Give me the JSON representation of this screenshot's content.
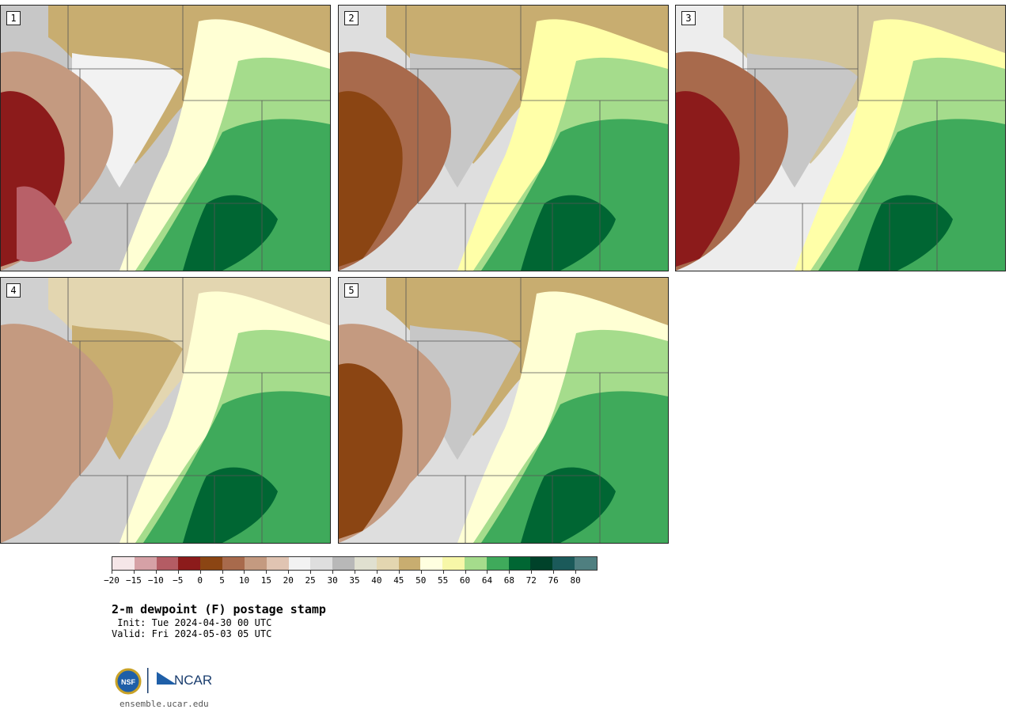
{
  "panels": [
    {
      "label": "1",
      "fields": [
        {
          "color": "#c7c7c7",
          "shape": "bg"
        },
        {
          "color": "#c8ad70",
          "shape": "north-band"
        },
        {
          "color": "#f2f2f2",
          "shape": "mid-gray"
        },
        {
          "color": "#c49a80",
          "shape": "west-blob"
        },
        {
          "color": "#8c1b1b",
          "shape": "west-core"
        },
        {
          "color": "#b86068",
          "shape": "west-spot"
        },
        {
          "color": "#ffffd4",
          "shape": "yellow-band"
        },
        {
          "color": "#a5dc8c",
          "shape": "light-green"
        },
        {
          "color": "#3faa5b",
          "shape": "green"
        },
        {
          "color": "#006633",
          "shape": "dark-green"
        }
      ]
    },
    {
      "label": "2",
      "fields": [
        {
          "color": "#dedede",
          "shape": "bg"
        },
        {
          "color": "#c8ad70",
          "shape": "north-band"
        },
        {
          "color": "#c7c7c7",
          "shape": "mid-gray"
        },
        {
          "color": "#a86a4c",
          "shape": "west-blob"
        },
        {
          "color": "#8b4513",
          "shape": "west-core"
        },
        {
          "color": "#ffffa8",
          "shape": "yellow-band"
        },
        {
          "color": "#a5dc8c",
          "shape": "light-green"
        },
        {
          "color": "#3faa5b",
          "shape": "green"
        },
        {
          "color": "#006633",
          "shape": "dark-green"
        }
      ]
    },
    {
      "label": "3",
      "fields": [
        {
          "color": "#ededed",
          "shape": "bg"
        },
        {
          "color": "#d2c49a",
          "shape": "north-band"
        },
        {
          "color": "#c7c7c7",
          "shape": "mid-gray"
        },
        {
          "color": "#a86a4c",
          "shape": "west-blob"
        },
        {
          "color": "#8c1b1b",
          "shape": "west-core"
        },
        {
          "color": "#ffffa8",
          "shape": "yellow-band"
        },
        {
          "color": "#a5dc8c",
          "shape": "light-green"
        },
        {
          "color": "#3faa5b",
          "shape": "green"
        },
        {
          "color": "#006633",
          "shape": "dark-green"
        }
      ]
    },
    {
      "label": "4",
      "fields": [
        {
          "color": "#d0d0d0",
          "shape": "bg"
        },
        {
          "color": "#e3d6b0",
          "shape": "north-band"
        },
        {
          "color": "#c8ad70",
          "shape": "mid-gray"
        },
        {
          "color": "#c49a80",
          "shape": "west-blob"
        },
        {
          "color": "#ffffd4",
          "shape": "yellow-band"
        },
        {
          "color": "#a5dc8c",
          "shape": "light-green"
        },
        {
          "color": "#3faa5b",
          "shape": "green"
        },
        {
          "color": "#006633",
          "shape": "dark-green"
        }
      ]
    },
    {
      "label": "5",
      "fields": [
        {
          "color": "#dedede",
          "shape": "bg"
        },
        {
          "color": "#c8ad70",
          "shape": "north-band"
        },
        {
          "color": "#c7c7c7",
          "shape": "mid-gray"
        },
        {
          "color": "#c49a80",
          "shape": "west-blob"
        },
        {
          "color": "#8b4513",
          "shape": "west-core"
        },
        {
          "color": "#ffffd4",
          "shape": "yellow-band"
        },
        {
          "color": "#a5dc8c",
          "shape": "light-green"
        },
        {
          "color": "#3faa5b",
          "shape": "green"
        },
        {
          "color": "#006633",
          "shape": "dark-green"
        }
      ]
    }
  ],
  "colorbar": {
    "colors": [
      "#f5e6e8",
      "#d6a1a6",
      "#b45c64",
      "#8c1b1b",
      "#8b4513",
      "#a86a4c",
      "#c49a80",
      "#e0c4b2",
      "#f2f2f2",
      "#dedede",
      "#b8b8b8",
      "#e0e0d0",
      "#e3d6b0",
      "#c8ad70",
      "#ffffe0",
      "#f7f7a8",
      "#a5dc8c",
      "#3faa5b",
      "#006633",
      "#00422a",
      "#1b5a5a",
      "#4f7f80"
    ],
    "tick_labels": [
      "−20",
      "−15",
      "−10",
      "−5",
      "0",
      "5",
      "10",
      "15",
      "20",
      "25",
      "30",
      "35",
      "40",
      "45",
      "50",
      "55",
      "60",
      "64",
      "68",
      "72",
      "76",
      "80"
    ]
  },
  "title": "2-m dewpoint (F) postage stamp",
  "init_text": " Init: Tue 2024-04-30 00 UTC",
  "valid_text": "Valid: Fri 2024-05-03 05 UTC",
  "logo": {
    "left_text": "NSF",
    "right_text": "NCAR"
  },
  "site_text": "ensemble.ucar.edu"
}
